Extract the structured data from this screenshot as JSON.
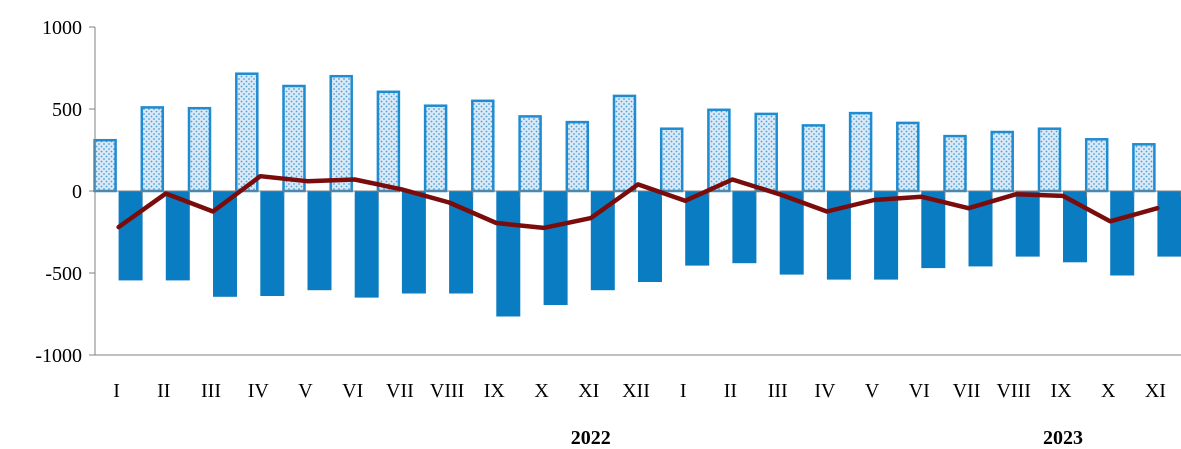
{
  "colors": {
    "positive_fill": "#dbe9f6",
    "positive_dots": "#4aa0d8",
    "positive_stroke": "#1f8bd0",
    "negative_fill": "#0a7cc1",
    "line": "#7b0c0c",
    "axis": "#808080"
  },
  "chart_data": {
    "type": "bar",
    "categories": [
      "I",
      "II",
      "III",
      "IV",
      "V",
      "VI",
      "VII",
      "VIII",
      "IX",
      "X",
      "XI",
      "XII",
      "I",
      "II",
      "III",
      "IV",
      "V",
      "VI",
      "VII",
      "VIII",
      "IX",
      "X",
      "XI"
    ],
    "year_labels": [
      {
        "label": "2022",
        "category_index": 10
      },
      {
        "label": "2023",
        "category_index": 20
      }
    ],
    "ylim": [
      -1000,
      1000
    ],
    "yticks": [
      -1000,
      -500,
      0,
      500,
      1000
    ],
    "ytick_labels": [
      "-1000",
      "-500",
      "0",
      "500",
      "1000"
    ],
    "grid": false,
    "legend": "none",
    "series": [
      {
        "kind": "bar-positive",
        "values": [
          310,
          510,
          505,
          715,
          640,
          700,
          605,
          520,
          550,
          455,
          420,
          580,
          380,
          495,
          470,
          400,
          475,
          415,
          335,
          360,
          380,
          315,
          285
        ]
      },
      {
        "kind": "bar-negative",
        "values": [
          -545,
          -545,
          -645,
          -640,
          -605,
          -650,
          -625,
          -625,
          -765,
          -695,
          -605,
          -555,
          -455,
          -440,
          -510,
          -540,
          -540,
          -470,
          -460,
          -400,
          -435,
          -515,
          -400
        ]
      },
      {
        "kind": "line",
        "values": [
          -220,
          -15,
          -125,
          90,
          60,
          70,
          10,
          -70,
          -195,
          -225,
          -165,
          40,
          -60,
          70,
          -20,
          -125,
          -55,
          -35,
          -105,
          -20,
          -30,
          -185,
          -105
        ]
      }
    ]
  }
}
